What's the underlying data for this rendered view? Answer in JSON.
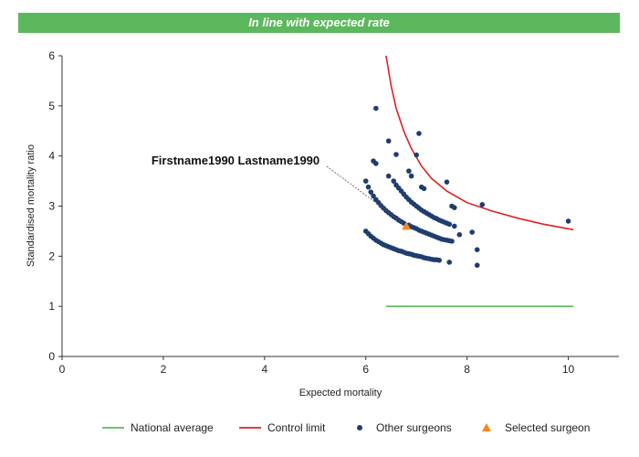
{
  "banner": {
    "text": "In line with expected rate"
  },
  "chart_data": {
    "type": "scatter",
    "title": "In line with expected rate",
    "xlabel": "Expected mortality",
    "ylabel": "Standardised mortality ratio",
    "xlim": [
      0,
      11
    ],
    "ylim": [
      0,
      6
    ],
    "xticks": [
      0,
      2,
      4,
      6,
      8,
      10
    ],
    "yticks": [
      0,
      1,
      2,
      3,
      4,
      5,
      6
    ],
    "grid": false,
    "legend_position": "bottom",
    "annotation": {
      "text": "Firstname1990 Lastname1990",
      "points_to": [
        6.8,
        2.6
      ]
    },
    "colors": {
      "national_average": "#5cb85c",
      "control_limit": "#e02020",
      "other_surgeons": "#1f3d6e",
      "selected_surgeon": "#f08a24",
      "banner": "#5cb85c"
    },
    "series": [
      {
        "name": "National average",
        "kind": "line",
        "points": [
          [
            6.4,
            1.0
          ],
          [
            10.1,
            1.0
          ]
        ]
      },
      {
        "name": "Control limit",
        "kind": "line",
        "points": [
          [
            6.4,
            6.0
          ],
          [
            6.5,
            5.4
          ],
          [
            6.6,
            4.95
          ],
          [
            6.75,
            4.5
          ],
          [
            6.9,
            4.15
          ],
          [
            7.1,
            3.8
          ],
          [
            7.3,
            3.55
          ],
          [
            7.6,
            3.3
          ],
          [
            8.0,
            3.07
          ],
          [
            8.5,
            2.9
          ],
          [
            9.0,
            2.76
          ],
          [
            9.5,
            2.64
          ],
          [
            10.1,
            2.53
          ]
        ]
      },
      {
        "name": "Other surgeons",
        "kind": "scatter",
        "points": [
          [
            6.0,
            2.5
          ],
          [
            6.05,
            2.45
          ],
          [
            6.1,
            2.4
          ],
          [
            6.15,
            2.36
          ],
          [
            6.2,
            2.32
          ],
          [
            6.25,
            2.29
          ],
          [
            6.3,
            2.26
          ],
          [
            6.35,
            2.23
          ],
          [
            6.4,
            2.21
          ],
          [
            6.45,
            2.19
          ],
          [
            6.5,
            2.17
          ],
          [
            6.55,
            2.15
          ],
          [
            6.6,
            2.13
          ],
          [
            6.65,
            2.11
          ],
          [
            6.7,
            2.1
          ],
          [
            6.75,
            2.08
          ],
          [
            6.8,
            2.06
          ],
          [
            6.85,
            2.05
          ],
          [
            6.9,
            2.04
          ],
          [
            6.95,
            2.02
          ],
          [
            7.0,
            2.01
          ],
          [
            7.05,
            2.0
          ],
          [
            7.1,
            1.99
          ],
          [
            7.15,
            1.97
          ],
          [
            7.2,
            1.96
          ],
          [
            7.25,
            1.95
          ],
          [
            7.3,
            1.94
          ],
          [
            7.35,
            1.93
          ],
          [
            7.4,
            1.93
          ],
          [
            7.45,
            1.92
          ],
          [
            6.0,
            3.5
          ],
          [
            6.05,
            3.38
          ],
          [
            6.1,
            3.28
          ],
          [
            6.15,
            3.2
          ],
          [
            6.2,
            3.13
          ],
          [
            6.25,
            3.07
          ],
          [
            6.3,
            3.01
          ],
          [
            6.35,
            2.96
          ],
          [
            6.4,
            2.91
          ],
          [
            6.45,
            2.87
          ],
          [
            6.5,
            2.83
          ],
          [
            6.55,
            2.79
          ],
          [
            6.6,
            2.76
          ],
          [
            6.65,
            2.72
          ],
          [
            6.7,
            2.69
          ],
          [
            6.75,
            2.66
          ],
          [
            6.85,
            2.62
          ],
          [
            6.9,
            2.59
          ],
          [
            6.95,
            2.57
          ],
          [
            7.0,
            2.55
          ],
          [
            7.05,
            2.52
          ],
          [
            7.1,
            2.5
          ],
          [
            7.15,
            2.48
          ],
          [
            7.2,
            2.46
          ],
          [
            7.25,
            2.44
          ],
          [
            7.3,
            2.42
          ],
          [
            7.35,
            2.4
          ],
          [
            7.4,
            2.38
          ],
          [
            7.45,
            2.36
          ],
          [
            7.5,
            2.34
          ],
          [
            7.55,
            2.33
          ],
          [
            7.6,
            2.32
          ],
          [
            7.65,
            2.31
          ],
          [
            7.7,
            2.3
          ],
          [
            6.55,
            3.5
          ],
          [
            6.6,
            3.42
          ],
          [
            6.65,
            3.36
          ],
          [
            6.7,
            3.3
          ],
          [
            6.75,
            3.24
          ],
          [
            6.8,
            3.18
          ],
          [
            6.85,
            3.13
          ],
          [
            6.9,
            3.08
          ],
          [
            6.95,
            3.04
          ],
          [
            7.0,
            3.0
          ],
          [
            7.05,
            2.96
          ],
          [
            7.1,
            2.92
          ],
          [
            7.15,
            2.89
          ],
          [
            7.2,
            2.86
          ],
          [
            7.25,
            2.83
          ],
          [
            7.3,
            2.8
          ],
          [
            7.35,
            2.77
          ],
          [
            7.4,
            2.75
          ],
          [
            7.45,
            2.72
          ],
          [
            7.5,
            2.7
          ],
          [
            7.55,
            2.68
          ],
          [
            7.6,
            2.66
          ],
          [
            7.65,
            2.64
          ],
          [
            7.75,
            2.6
          ],
          [
            6.15,
            3.9
          ],
          [
            6.2,
            3.85
          ],
          [
            6.45,
            3.6
          ],
          [
            6.6,
            4.03
          ],
          [
            6.85,
            3.7
          ],
          [
            6.9,
            3.6
          ],
          [
            7.1,
            3.38
          ],
          [
            7.15,
            3.35
          ],
          [
            7.7,
            3.0
          ],
          [
            7.75,
            2.97
          ],
          [
            7.85,
            2.43
          ],
          [
            8.1,
            2.48
          ],
          [
            8.2,
            2.13
          ],
          [
            7.65,
            1.88
          ],
          [
            8.2,
            1.82
          ],
          [
            6.2,
            4.95
          ],
          [
            6.45,
            4.3
          ],
          [
            7.0,
            4.02
          ],
          [
            7.05,
            4.45
          ],
          [
            7.6,
            3.48
          ],
          [
            8.3,
            3.03
          ],
          [
            10.0,
            2.7
          ]
        ]
      },
      {
        "name": "Selected surgeon",
        "kind": "scatter",
        "marker": "triangle",
        "points": [
          [
            6.8,
            2.6
          ]
        ]
      }
    ]
  }
}
